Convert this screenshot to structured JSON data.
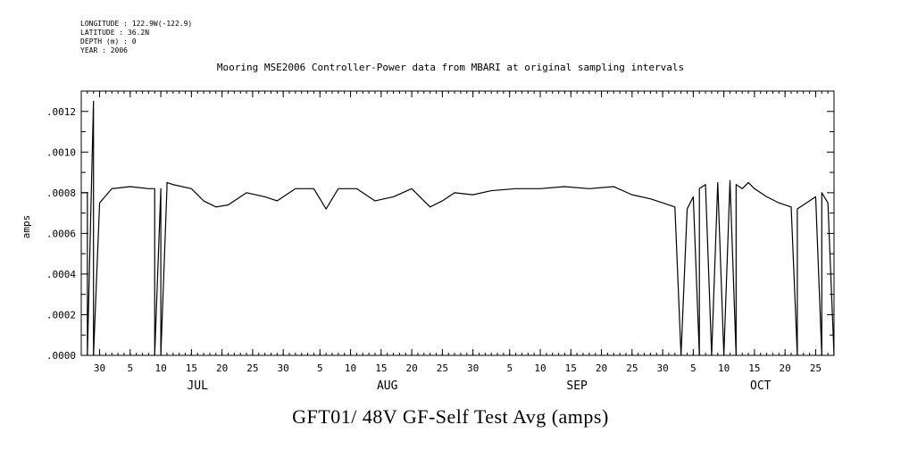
{
  "meta": {
    "longitude": "LONGITUDE : 122.9W(-122.9)",
    "latitude": "LATITUDE : 36.2N",
    "depth": "DEPTH (m) : 0",
    "year": "YEAR : 2006"
  },
  "chart_data": {
    "type": "line",
    "title": "Mooring MSE2006 Controller-Power data from MBARI at original sampling intervals",
    "ylabel": "amps",
    "footer_title": "GFT01/ 48V GF-Self Test Avg (amps)",
    "ylim": [
      0,
      0.0013
    ],
    "xlim": [
      "2006-06-27",
      "2006-10-28"
    ],
    "y_ticks": [
      ".0000",
      ".0002",
      ".0004",
      ".0006",
      ".0008",
      ".0010",
      ".0012"
    ],
    "x_tick_labels": [
      "30",
      "5",
      "10",
      "15",
      "20",
      "25",
      "30",
      "5",
      "10",
      "15",
      "20",
      "25",
      "30",
      "5",
      "10",
      "15",
      "20",
      "25",
      "30",
      "5",
      "10",
      "15",
      "20",
      "25"
    ],
    "month_labels": [
      "JUL",
      "AUG",
      "SEP",
      "OCT"
    ],
    "series": [
      {
        "color": "#000000",
        "x": [
          "2006-06-27",
          "2006-06-28",
          "2006-06-28",
          "2006-06-29",
          "2006-06-29",
          "2006-06-30",
          "2006-07-02",
          "2006-07-05",
          "2006-07-08",
          "2006-07-09",
          "2006-07-09",
          "2006-07-10",
          "2006-07-10",
          "2006-07-11",
          "2006-07-11",
          "2006-07-12",
          "2006-07-15",
          "2006-07-17",
          "2006-07-19",
          "2006-07-21",
          "2006-07-24",
          "2006-07-27",
          "2006-07-29",
          "2006-08-01",
          "2006-08-04",
          "2006-08-06",
          "2006-08-08",
          "2006-08-11",
          "2006-08-14",
          "2006-08-17",
          "2006-08-20",
          "2006-08-23",
          "2006-08-25",
          "2006-08-27",
          "2006-08-30",
          "2006-09-02",
          "2006-09-06",
          "2006-09-10",
          "2006-09-14",
          "2006-09-18",
          "2006-09-22",
          "2006-09-25",
          "2006-09-28",
          "2006-09-30",
          "2006-10-02",
          "2006-10-03",
          "2006-10-04",
          "2006-10-05",
          "2006-10-06",
          "2006-10-06",
          "2006-10-07",
          "2006-10-08",
          "2006-10-09",
          "2006-10-10",
          "2006-10-11",
          "2006-10-12",
          "2006-10-12",
          "2006-10-13",
          "2006-10-14",
          "2006-10-15",
          "2006-10-17",
          "2006-10-19",
          "2006-10-21",
          "2006-10-22",
          "2006-10-22",
          "2006-10-23",
          "2006-10-25",
          "2006-10-26",
          "2006-10-26",
          "2006-10-27",
          "2006-10-28"
        ],
        "y": [
          0.0008,
          0.0008,
          0.0,
          0.00125,
          0.0,
          0.00075,
          0.00082,
          0.00083,
          0.00082,
          0.00082,
          0.0,
          0.00082,
          0.0,
          0.00082,
          0.00085,
          0.00084,
          0.00082,
          0.00076,
          0.00073,
          0.00074,
          0.0008,
          0.00078,
          0.00076,
          0.00082,
          0.00082,
          0.00072,
          0.00082,
          0.00082,
          0.00076,
          0.00078,
          0.00082,
          0.00073,
          0.00076,
          0.0008,
          0.00079,
          0.00081,
          0.00082,
          0.00082,
          0.00083,
          0.00082,
          0.00083,
          0.00079,
          0.00077,
          0.00075,
          0.00073,
          0.0,
          0.00072,
          0.00078,
          0.0,
          0.00082,
          0.00084,
          0.0,
          0.00085,
          0.0,
          0.00086,
          0.0,
          0.00084,
          0.00082,
          0.00085,
          0.00082,
          0.00078,
          0.00075,
          0.00073,
          0.0,
          0.00072,
          0.00074,
          0.00078,
          0.0,
          0.0008,
          0.00075,
          0.0
        ]
      }
    ]
  }
}
